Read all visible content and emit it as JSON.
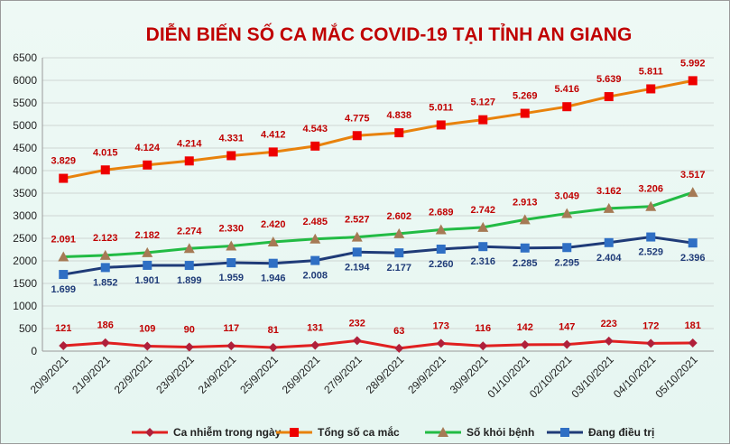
{
  "chart_data": {
    "type": "line",
    "title": "DIỄN BIẾN SỐ CA MẮC COVID-19 TẠI TỈNH AN GIANG",
    "xlabel": "",
    "ylabel": "",
    "ylim": [
      0,
      6500
    ],
    "y_ticks": [
      "0",
      "500",
      "1000",
      "1500",
      "2000",
      "2500",
      "3000",
      "3500",
      "4000",
      "4500",
      "5000",
      "5500",
      "6000",
      "6500"
    ],
    "grid": true,
    "legend_position": "bottom",
    "categories": [
      "20/9/2021",
      "21/9/2021",
      "22/9/2021",
      "23/9/2021",
      "24/9/2021",
      "25/9/2021",
      "26/9/2021",
      "27/9/2021",
      "28/9/2021",
      "29/9/2021",
      "30/9/2021",
      "01/10/2021",
      "02/10/2021",
      "03/10/2021",
      "04/10/2021",
      "05/10/2021"
    ],
    "series": [
      {
        "name": "Ca nhiễm trong ngày",
        "color": "#e02020",
        "marker_color": "#b0203a",
        "marker": "diamond",
        "label_color": "#c00000",
        "values": [
          121,
          186,
          109,
          90,
          117,
          81,
          131,
          232,
          63,
          173,
          116,
          142,
          147,
          223,
          172,
          181
        ],
        "labels": [
          "121",
          "186",
          "109",
          "90",
          "117",
          "81",
          "131",
          "232",
          "63",
          "173",
          "116",
          "142",
          "147",
          "223",
          "172",
          "181"
        ]
      },
      {
        "name": "Tổng số ca mắc",
        "color": "#e8820c",
        "marker_color": "#ee0000",
        "marker": "square",
        "label_color": "#c00000",
        "values": [
          3829,
          4015,
          4124,
          4214,
          4331,
          4412,
          4543,
          4775,
          4838,
          5011,
          5127,
          5269,
          5416,
          5639,
          5811,
          5992
        ],
        "labels": [
          "3.829",
          "4.015",
          "4.124",
          "4.214",
          "4.331",
          "4.412",
          "4.543",
          "4.775",
          "4.838",
          "5.011",
          "5.127",
          "5.269",
          "5.416",
          "5.639",
          "5.811",
          "5.992"
        ]
      },
      {
        "name": "Số khỏi bệnh",
        "color": "#22bb44",
        "marker_color": "#a67a55",
        "marker": "triangle",
        "label_color": "#c00000",
        "values": [
          2091,
          2123,
          2182,
          2274,
          2330,
          2420,
          2485,
          2527,
          2602,
          2689,
          2742,
          2913,
          3049,
          3162,
          3206,
          3517
        ],
        "labels": [
          "2.091",
          "2.123",
          "2.182",
          "2.274",
          "2.330",
          "2.420",
          "2.485",
          "2.527",
          "2.602",
          "2.689",
          "2.742",
          "2.913",
          "3.049",
          "3.162",
          "3.206",
          "3.517"
        ]
      },
      {
        "name": "Đang điều trị",
        "color": "#1f3b78",
        "marker_color": "#2f6fc4",
        "marker": "square",
        "label_color": "#1f3b78",
        "values": [
          1699,
          1852,
          1901,
          1899,
          1959,
          1946,
          2008,
          2194,
          2177,
          2260,
          2316,
          2285,
          2295,
          2404,
          2529,
          2396
        ],
        "labels": [
          "1.699",
          "1.852",
          "1.901",
          "1.899",
          "1.959",
          "1.946",
          "2.008",
          "2.194",
          "2.177",
          "2.260",
          "2.316",
          "2.285",
          "2.295",
          "2.404",
          "2.529",
          "2.396"
        ]
      }
    ],
    "title_color": "#c00000",
    "grid_color": "#cfd6d3",
    "axis_color": "#9a9a9a"
  }
}
